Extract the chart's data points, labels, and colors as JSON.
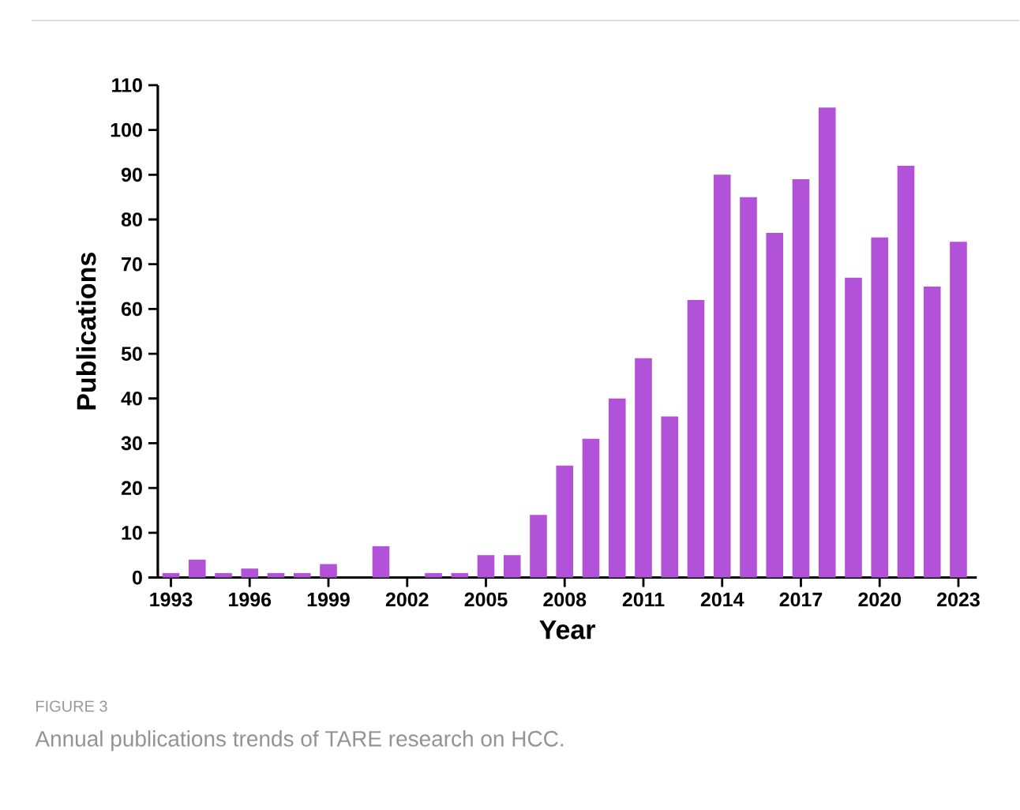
{
  "chart_data": {
    "type": "bar",
    "xlabel": "Year",
    "ylabel": "Publications",
    "x": [
      1993,
      1994,
      1995,
      1996,
      1997,
      1998,
      1999,
      2000,
      2001,
      2002,
      2003,
      2004,
      2005,
      2006,
      2007,
      2008,
      2009,
      2010,
      2011,
      2012,
      2013,
      2014,
      2015,
      2016,
      2017,
      2018,
      2019,
      2020,
      2021,
      2022,
      2023
    ],
    "values": [
      1,
      4,
      1,
      2,
      1,
      1,
      3,
      0,
      7,
      0,
      1,
      1,
      5,
      5,
      14,
      25,
      31,
      40,
      49,
      36,
      62,
      90,
      85,
      77,
      89,
      105,
      67,
      76,
      92,
      65,
      75
    ],
    "color": "#b252d8",
    "xlim": [
      1992.5,
      2023.7
    ],
    "xticks": [
      1993,
      1996,
      1999,
      2002,
      2005,
      2008,
      2011,
      2014,
      2017,
      2020,
      2023
    ],
    "ylim": [
      0,
      110
    ],
    "yticks": [
      0,
      10,
      20,
      30,
      40,
      50,
      60,
      70,
      80,
      90,
      100,
      110
    ],
    "grid": false,
    "annotations": [
      "FIGURE 3",
      "Annual publications trends of TARE research on HCC."
    ]
  }
}
